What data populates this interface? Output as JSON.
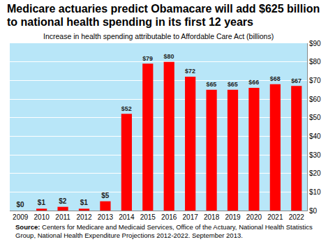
{
  "chart_data": {
    "type": "bar",
    "title": "Medicare actuaries predict Obamacare will add $625 billion to national health spending in its first 12 years",
    "subtitle": "Increase in health spending attributable to Affordable Care Act (billions)",
    "source_label": "Source:",
    "source": "Centers for Medicare and Medicaid Services, Office of the Actuary, National Health Statistics Group, National Health Expenditure Projections 2012-2022. September 2013.",
    "categories": [
      "2009",
      "2010",
      "2011",
      "2012",
      "2013",
      "2014",
      "2015",
      "2016",
      "2017",
      "2018",
      "2019",
      "2020",
      "2021",
      "2022"
    ],
    "values": [
      0,
      1,
      2,
      1,
      5,
      52,
      79,
      80,
      72,
      65,
      65,
      66,
      68,
      67
    ],
    "value_labels": [
      "$0",
      "$1",
      "$2",
      "$1",
      "$5",
      "$52",
      "$79",
      "$80",
      "$72",
      "$65",
      "$65",
      "$66",
      "$68",
      "$67"
    ],
    "color": "#ff0000",
    "ylim": [
      0,
      90
    ],
    "yticks": [
      {
        "value": 0,
        "label": "$0"
      },
      {
        "value": 10,
        "label": "$10"
      },
      {
        "value": 20,
        "label": "$20"
      },
      {
        "value": 30,
        "label": "$30"
      },
      {
        "value": 40,
        "label": "$40"
      },
      {
        "value": 50,
        "label": "$50"
      },
      {
        "value": 60,
        "label": "$60"
      },
      {
        "value": 70,
        "label": "$70"
      },
      {
        "value": 80,
        "label": "$80"
      },
      {
        "value": 90,
        "label": "$90"
      }
    ],
    "grid": true,
    "data_labels": true
  }
}
